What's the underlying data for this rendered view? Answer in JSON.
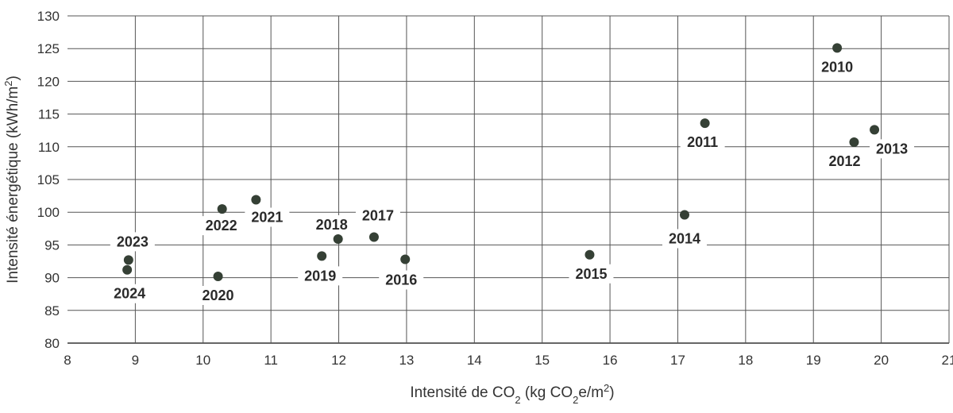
{
  "chart_data": {
    "type": "scatter",
    "xlabel_prefix": "Intensité de CO",
    "xlabel_sub": "2",
    "xlabel_mid": " (kg CO",
    "xlabel_sub2": "2",
    "xlabel_unit": "e/m",
    "xlabel_sup": "2",
    "xlabel_close": ")",
    "ylabel_main": "Intensité énergétique (kWh/m",
    "ylabel_sup": "2",
    "ylabel_close": ")",
    "xlim": [
      8,
      21
    ],
    "ylim": [
      80,
      130
    ],
    "xticks": [
      8,
      9,
      10,
      11,
      12,
      13,
      14,
      15,
      16,
      17,
      18,
      19,
      20,
      21
    ],
    "yticks": [
      80,
      85,
      90,
      95,
      100,
      105,
      110,
      115,
      120,
      125,
      130
    ],
    "grid": true,
    "point_color": "#354035",
    "points": [
      {
        "label": "2010",
        "x": 19.35,
        "y": 125.1
      },
      {
        "label": "2011",
        "x": 17.4,
        "y": 113.6
      },
      {
        "label": "2012",
        "x": 19.6,
        "y": 110.7
      },
      {
        "label": "2013",
        "x": 19.9,
        "y": 112.6
      },
      {
        "label": "2014",
        "x": 17.1,
        "y": 99.6
      },
      {
        "label": "2015",
        "x": 15.7,
        "y": 93.5
      },
      {
        "label": "2016",
        "x": 12.98,
        "y": 92.8
      },
      {
        "label": "2017",
        "x": 12.52,
        "y": 96.2
      },
      {
        "label": "2018",
        "x": 11.99,
        "y": 95.9
      },
      {
        "label": "2019",
        "x": 11.75,
        "y": 93.3
      },
      {
        "label": "2020",
        "x": 10.22,
        "y": 90.2
      },
      {
        "label": "2021",
        "x": 10.78,
        "y": 101.9
      },
      {
        "label": "2022",
        "x": 10.28,
        "y": 100.5
      },
      {
        "label": "2023",
        "x": 8.9,
        "y": 92.7
      },
      {
        "label": "2024",
        "x": 8.88,
        "y": 91.2
      }
    ]
  }
}
